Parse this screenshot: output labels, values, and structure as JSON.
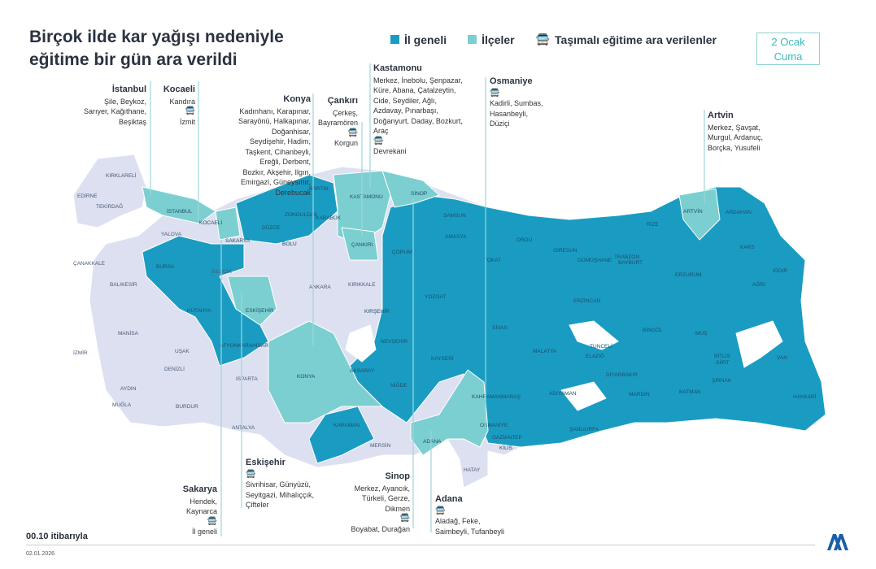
{
  "title": {
    "line1": "Birçok ilde kar yağışı nedeniyle",
    "line2": "eğitime bir gün ara verildi"
  },
  "legend": [
    {
      "label": "İl geneli",
      "color": "#1a9cc2"
    },
    {
      "label": "İlçeler",
      "color": "#7ccfd0"
    },
    {
      "label": "Taşımalı eğitime ara verilenler",
      "icon": "bus-icon"
    }
  ],
  "date_box": {
    "line1": "2 Ocak",
    "line2": "Cuma"
  },
  "colors": {
    "il_geneli": "#1a9cc2",
    "ilceler": "#7ccfd0",
    "other": "#dde0f0"
  },
  "annotations": {
    "istanbul": {
      "name": "İstanbul",
      "districts": "Şile, Beykoz, Sarıyer, Kağıthane, Beşiktaş"
    },
    "kocaeli": {
      "name": "Kocaeli",
      "districts": "Kandıra",
      "bus": "İzmit"
    },
    "konya": {
      "name": "Konya",
      "districts": "Kadınhanı, Karapınar, Sarayönü, Halkapınar, Doğanhisar, Seydişehir, Hadim, Taşkent, Cihanbeyli, Ereğli, Derbent, Bozkır, Akşehir, Ilgın, Emirgazi, Güneysınır, Derebucak"
    },
    "cankiri": {
      "name": "Çankırı",
      "districts": "Çerkeş, Bayramören",
      "bus": "Korgun"
    },
    "kastamonu": {
      "name": "Kastamonu",
      "districts": "Merkez, İnebolu, Şenpazar, Küre, Abana, Çatalzeytin, Cide, Seydiler, Ağlı, Azdavay, Pınarbaşı, Doğanyurt, Daday, Bozkurt, Araç",
      "bus": "Devrekani"
    },
    "osmaniye": {
      "name": "Osmaniye",
      "bus": "Kadirli, Sumbas, Hasanbeyli, Düziçi"
    },
    "artvin": {
      "name": "Artvin",
      "districts": "Merkez, Şavşat, Murgul, Ardanuç, Borçka, Yusufeli"
    },
    "sakarya": {
      "name": "Sakarya",
      "districts": "Hendek, Kaynarca",
      "bus": "İl geneli"
    },
    "eskisehir": {
      "name": "Eskişehir",
      "bus": "Sivrihisar, Günyüzü, Seyitgazi, Mihalıççık, Çifteler"
    },
    "sinop": {
      "name": "Sinop",
      "districts": "Merkez, Ayancık, Türkeli, Gerze, Dikmen",
      "bus": "Boyabat, Durağan"
    },
    "adana": {
      "name": "Adana",
      "bus": "Aladağ, Feke, Saimbeyli, Tufanbeyli"
    }
  },
  "provinces": [
    "KIRKLARELİ",
    "EDİRNE",
    "TEKİRDAĞ",
    "İSTANBUL",
    "KOCAELİ",
    "YALOVA",
    "SAKARYA",
    "BARTIN",
    "ZONGULDAK",
    "KARABÜK",
    "DÜZCE",
    "BOLU",
    "KASTAMONU",
    "SİNOP",
    "SAMSUN",
    "AMASYA",
    "ÇORUM",
    "ÇANKIRI",
    "ORDU",
    "GİRESUN",
    "TRABZON",
    "RİZE",
    "ARTVİN",
    "ARDAHAN",
    "KARS",
    "IĞDIR",
    "AĞRI",
    "ERZURUM",
    "BAYBURT",
    "GÜMÜŞHANE",
    "TOKAT",
    "SİVAS",
    "ERZİNCAN",
    "TUNCELİ",
    "BİNGÖL",
    "MUŞ",
    "BİTLİS",
    "VAN",
    "HAKKARİ",
    "ŞIRNAK",
    "SİİRT",
    "BATMAN",
    "MARDİN",
    "DİYARBAKIR",
    "ELAZIĞ",
    "MALATYA",
    "ADIYAMAN",
    "ŞANLIURFA",
    "GAZİANTEP",
    "KİLİS",
    "HATAY",
    "OSMANİYE",
    "KAHRAMANMARAŞ",
    "ADANA",
    "MERSİN",
    "KARAMAN",
    "NİĞDE",
    "KAYSERİ",
    "NEVŞEHİR",
    "AKSARAY",
    "KIRŞEHİR",
    "YOZGAT",
    "KIRIKKALE",
    "ANKARA",
    "KONYA",
    "ESKİŞEHİR",
    "BİLECİK",
    "BURSA",
    "KÜTAHYA",
    "AFYONKARAHİSAR",
    "ÇANAKKALE",
    "BALIKESİR",
    "MANİSA",
    "İZMİR",
    "UŞAK",
    "AYDIN",
    "DENİZLİ",
    "MUĞLA",
    "BURDUR",
    "ISPARTA",
    "ANTALYA"
  ],
  "footer": {
    "time": "00.10 itibarıyla",
    "date": "02.01.2026",
    "logo": "AA"
  }
}
